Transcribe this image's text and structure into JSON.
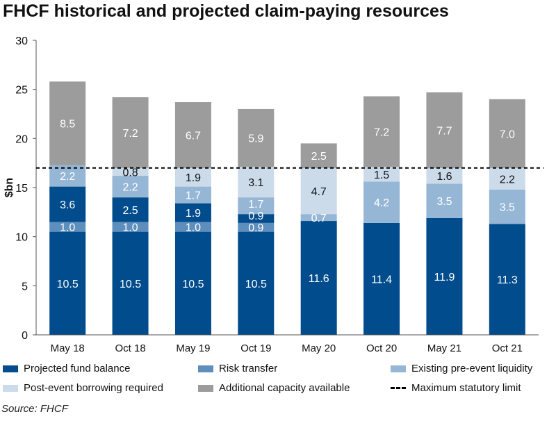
{
  "chart_data": {
    "type": "bar",
    "stacked": true,
    "title": "FHCF historical and projected claim-paying resources",
    "ylabel": "$bn",
    "xlabel": "",
    "ylim": [
      0,
      30
    ],
    "yticks": [
      0,
      5,
      10,
      15,
      20,
      25,
      30
    ],
    "categories": [
      "May 18",
      "Oct 18",
      "May 19",
      "Oct 19",
      "May 20",
      "Oct 20",
      "May 21",
      "Oct 21"
    ],
    "series_info": {
      "fund": {
        "name": "Projected fund balance",
        "color": "#004C8C"
      },
      "risk": {
        "name": "Risk transfer",
        "color": "#5E8EBB"
      },
      "liq": {
        "name": "Existing pre-event liquidity",
        "color": "#96B6D6"
      },
      "post": {
        "name": "Post-event borrowing required",
        "color": "#CCDBEA"
      },
      "add": {
        "name": "Additional capacity available",
        "color": "#9C9C9C"
      }
    },
    "bars": [
      [
        {
          "s": "fund",
          "v": 10.5
        },
        {
          "s": "risk",
          "v": 1.0
        },
        {
          "s": "fund",
          "v": 3.6
        },
        {
          "s": "liq",
          "v": 2.2
        },
        {
          "s": "add",
          "v": 8.5
        }
      ],
      [
        {
          "s": "fund",
          "v": 10.5
        },
        {
          "s": "risk",
          "v": 1.0
        },
        {
          "s": "fund",
          "v": 2.5
        },
        {
          "s": "liq",
          "v": 2.2
        },
        {
          "s": "post",
          "v": 0.8
        },
        {
          "s": "add",
          "v": 7.2
        }
      ],
      [
        {
          "s": "fund",
          "v": 10.5
        },
        {
          "s": "risk",
          "v": 1.0
        },
        {
          "s": "fund",
          "v": 1.9
        },
        {
          "s": "liq",
          "v": 1.7
        },
        {
          "s": "post",
          "v": 1.9
        },
        {
          "s": "add",
          "v": 6.7
        }
      ],
      [
        {
          "s": "fund",
          "v": 10.5
        },
        {
          "s": "risk",
          "v": 0.9
        },
        {
          "s": "fund",
          "v": 0.9
        },
        {
          "s": "liq",
          "v": 1.7
        },
        {
          "s": "post",
          "v": 3.1
        },
        {
          "s": "add",
          "v": 5.9
        }
      ],
      [
        {
          "s": "fund",
          "v": 11.6
        },
        {
          "s": "liq",
          "v": 0.7
        },
        {
          "s": "post",
          "v": 4.7
        },
        {
          "s": "add",
          "v": 2.5
        }
      ],
      [
        {
          "s": "fund",
          "v": 11.4
        },
        {
          "s": "liq",
          "v": 4.2
        },
        {
          "s": "post",
          "v": 1.5
        },
        {
          "s": "add",
          "v": 7.2
        }
      ],
      [
        {
          "s": "fund",
          "v": 11.9
        },
        {
          "s": "liq",
          "v": 3.5
        },
        {
          "s": "post",
          "v": 1.6
        },
        {
          "s": "add",
          "v": 7.7
        }
      ],
      [
        {
          "s": "fund",
          "v": 11.3
        },
        {
          "s": "liq",
          "v": 3.5
        },
        {
          "s": "post",
          "v": 2.2
        },
        {
          "s": "add",
          "v": 7.0
        }
      ]
    ],
    "reference_line": {
      "name": "Maximum statutory limit",
      "value": 17
    },
    "legend": [
      "Projected fund balance",
      "Risk transfer",
      "Existing pre-event liquidity",
      "Post-event borrowing required",
      "Additional capacity available",
      "Maximum statutory limit"
    ],
    "legend_position": "bottom",
    "source": "Source: FHCF"
  }
}
